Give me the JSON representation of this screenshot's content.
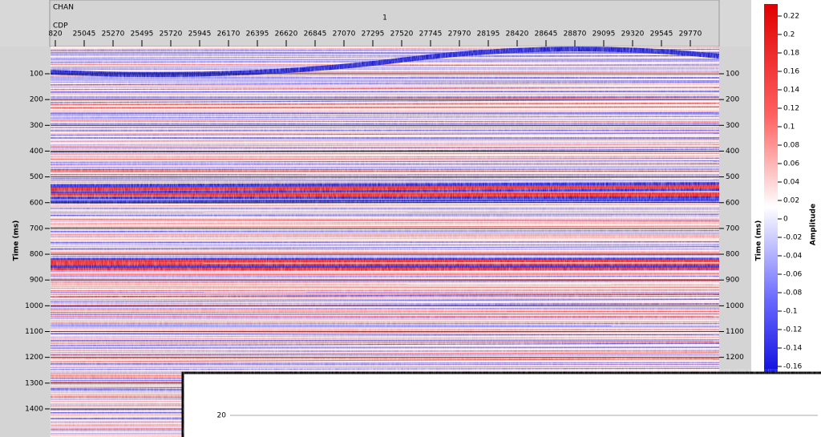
{
  "header": {
    "chan_label": "CHAN",
    "chan_value": "1",
    "cdp_label": "CDP",
    "cdp_ticks": [
      {
        "value": 24820,
        "label": "820"
      },
      25045,
      25270,
      25495,
      25720,
      25945,
      26170,
      26395,
      26620,
      26845,
      27070,
      27295,
      27520,
      27745,
      27970,
      28195,
      28420,
      28645,
      28870,
      29095,
      29320,
      29545,
      29770
    ]
  },
  "left_axis": {
    "label": "Time (ms)",
    "ticks": [
      100,
      200,
      300,
      400,
      500,
      600,
      700,
      800,
      900,
      1000,
      1100,
      1200,
      1300,
      1400
    ]
  },
  "right_axis": {
    "label": "Time (ms)",
    "ticks": [
      100,
      200,
      300,
      400,
      500,
      600,
      700,
      800,
      900,
      1000,
      1100,
      1200
    ]
  },
  "colorbar": {
    "label": "Amplitude",
    "ticks": [
      0.22,
      0.2,
      0.18,
      0.16,
      0.14,
      0.12,
      0.1,
      0.08,
      0.06,
      0.04,
      0.02,
      0,
      -0.02,
      -0.04,
      -0.06,
      -0.08,
      -0.1,
      -0.12,
      -0.14,
      -0.16
    ]
  },
  "inset": {
    "tick_label": "20"
  }
}
